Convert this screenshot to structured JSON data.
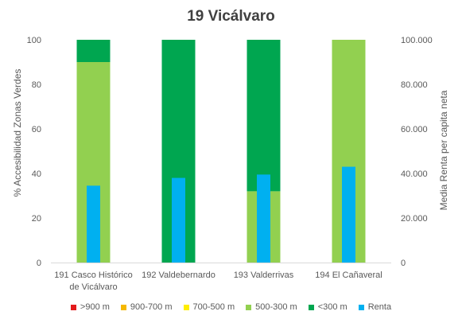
{
  "chart_data": {
    "type": "bar",
    "title": "19 Vicálvaro",
    "ylabel": "% Accesibilidad Zonas Verdes",
    "y2label": "Media Renta per capita neta",
    "ylim": [
      0,
      100
    ],
    "yticks": [
      "0",
      "20",
      "40",
      "60",
      "80",
      "100"
    ],
    "y2lim": [
      0,
      100000
    ],
    "y2ticks": [
      "0",
      "20.000",
      "40.000",
      "60.000",
      "80.000",
      "100.000"
    ],
    "categories": [
      [
        "191 Casco Histórico",
        "de Vicálvaro"
      ],
      [
        "192 Valdebernardo"
      ],
      [
        "193 Valderrivas"
      ],
      [
        "194 El Cañaveral"
      ]
    ],
    "stacked_series": [
      {
        "name": ">900 m",
        "color": "#e31a1c",
        "values": [
          0,
          0,
          0,
          0
        ]
      },
      {
        "name": "900-700 m",
        "color": "#f5b800",
        "values": [
          0,
          0,
          0,
          0
        ]
      },
      {
        "name": "700-500 m",
        "color": "#ffee00",
        "values": [
          0,
          0,
          0,
          0
        ]
      },
      {
        "name": "500-300 m",
        "color": "#92d050",
        "values": [
          90,
          0,
          32,
          100
        ]
      },
      {
        "name": "<300 m",
        "color": "#00a650",
        "values": [
          10,
          100,
          68,
          0
        ]
      }
    ],
    "secondary_series": {
      "name": "Renta",
      "color": "#00b0f0",
      "axis": "right",
      "values": [
        34500,
        38000,
        39500,
        43000
      ]
    },
    "grid": false,
    "legend": "bottom"
  }
}
